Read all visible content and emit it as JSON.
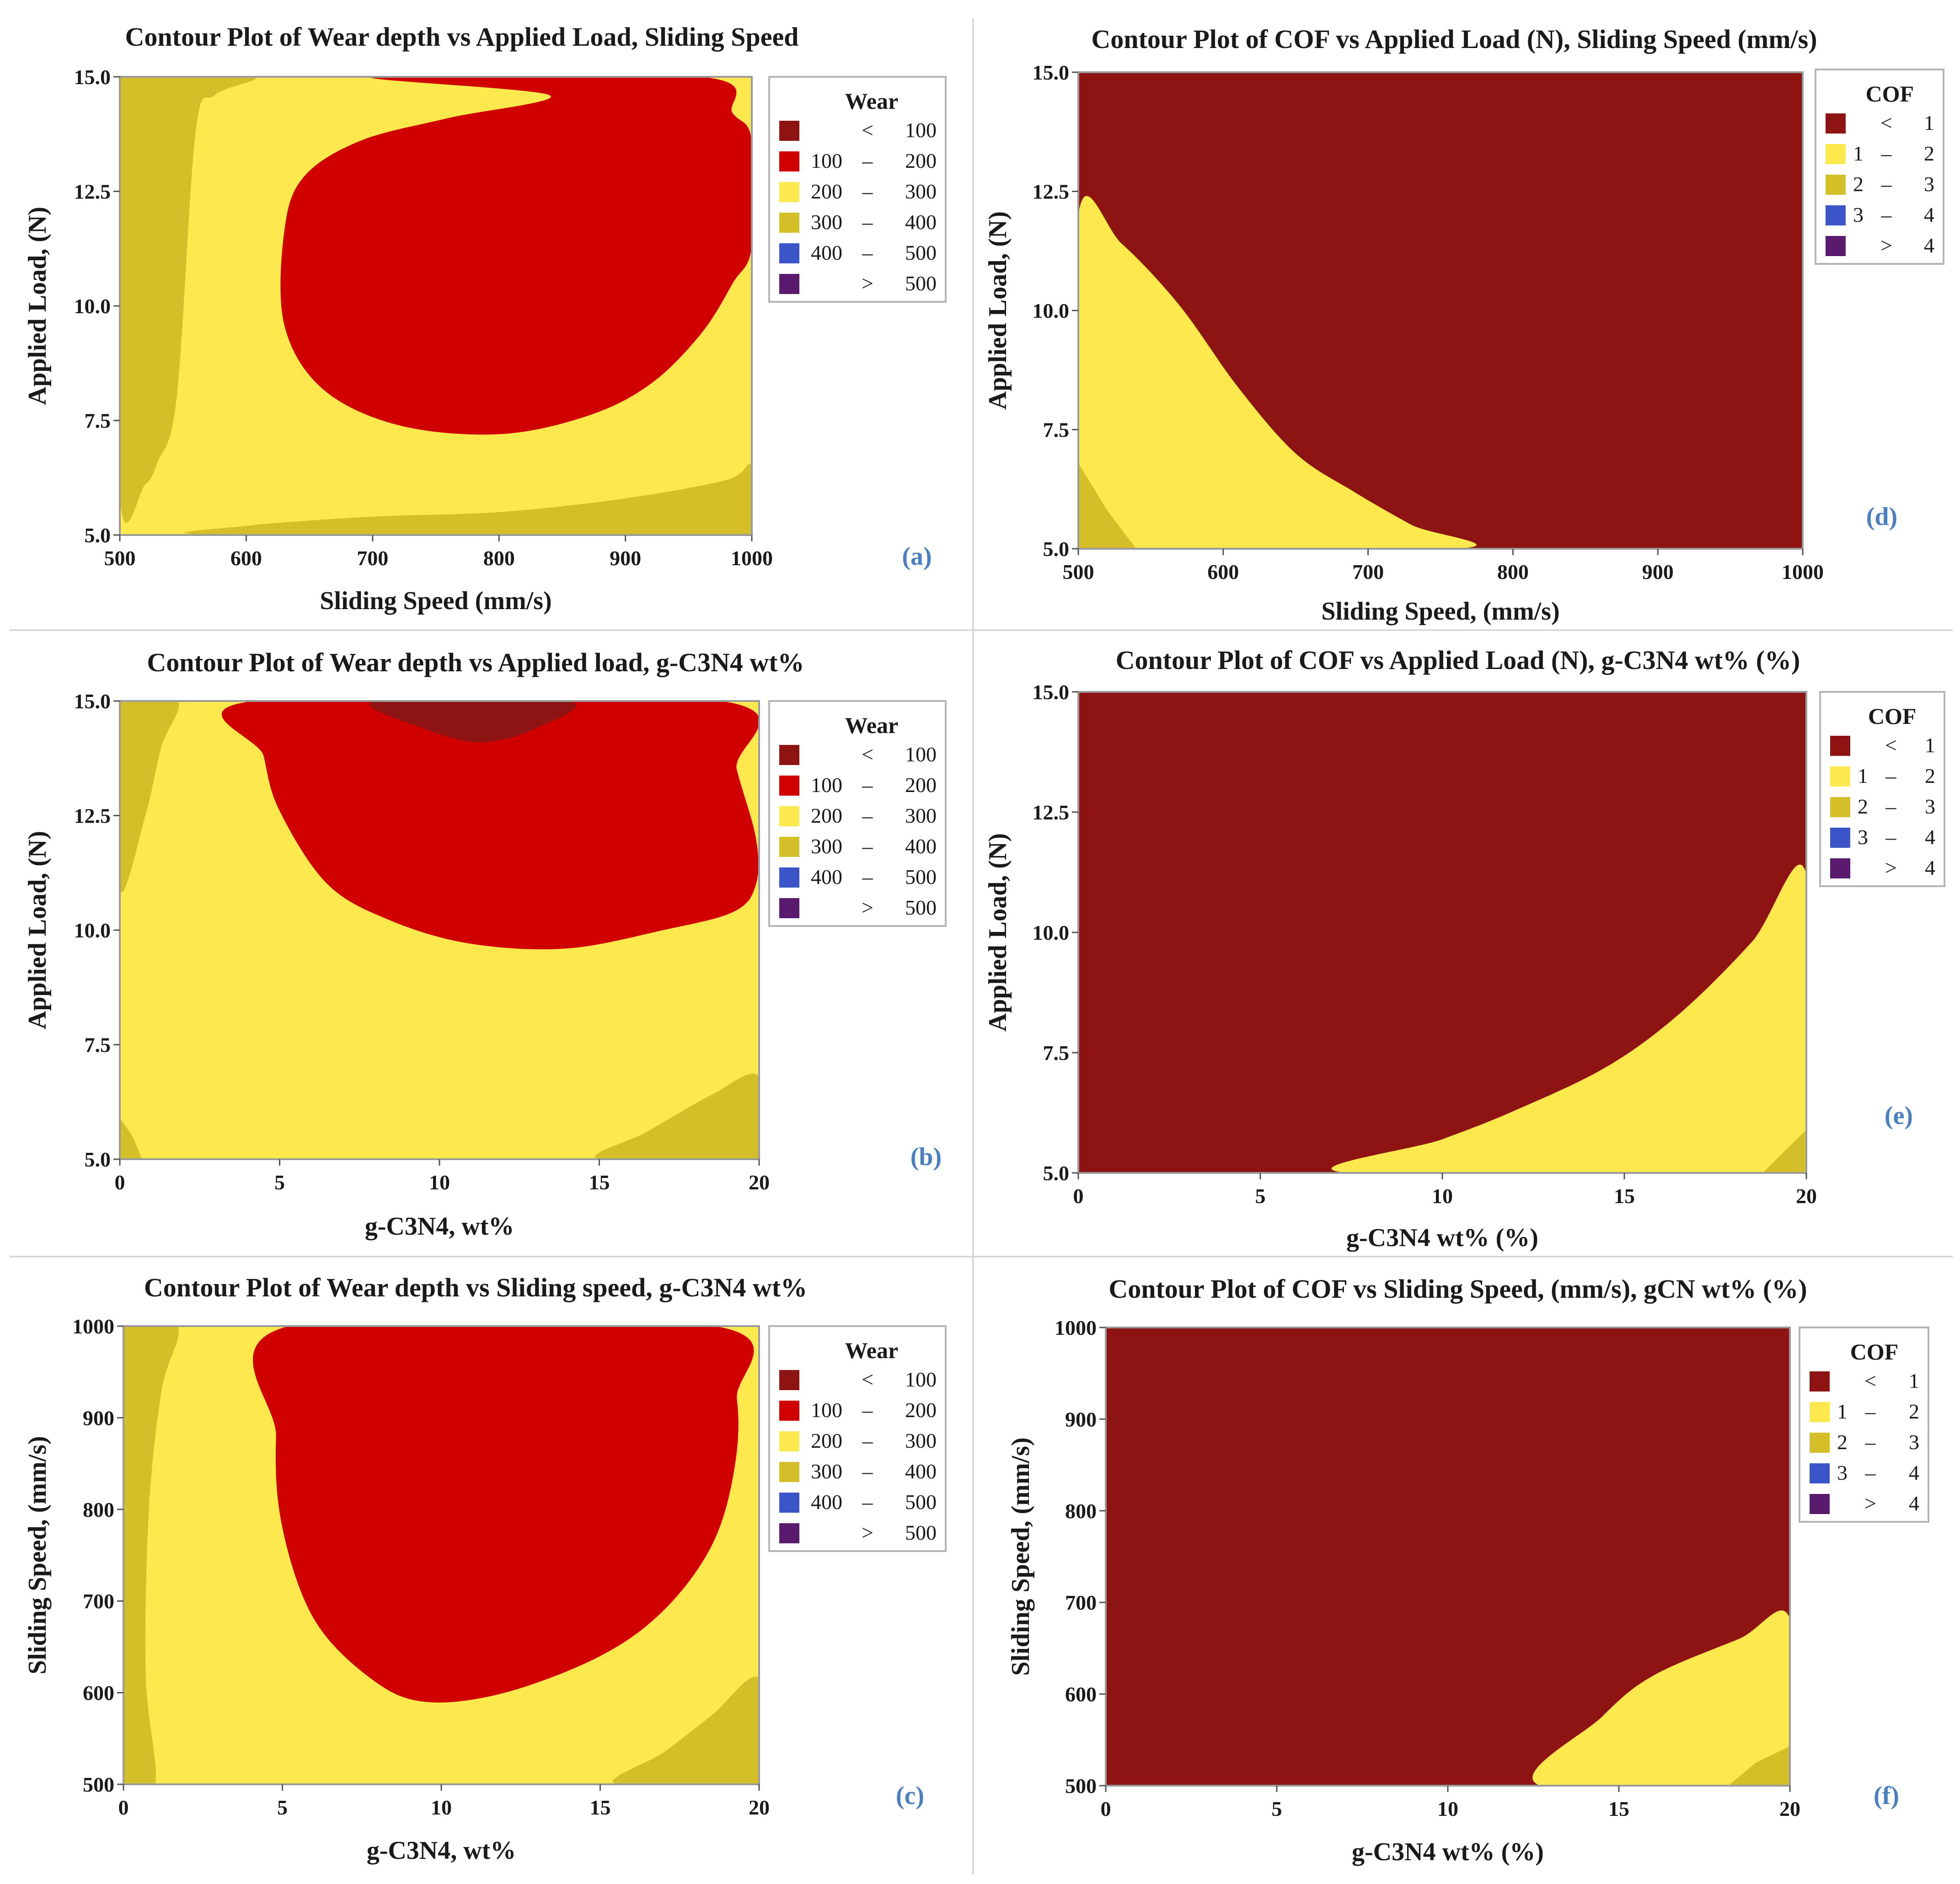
{
  "chart_data": [
    {
      "id": "a",
      "type": "contour",
      "title": "Contour Plot of Wear depth vs Applied Load, Sliding Speed",
      "xlabel": "Sliding Speed (mm/s)",
      "ylabel": "Applied Load, (N)",
      "xlim": [
        500,
        1000
      ],
      "ylim": [
        5,
        15
      ],
      "xticks": [
        "500",
        "600",
        "700",
        "800",
        "900",
        "1000"
      ],
      "yticks": [
        "5.0",
        "7.5",
        "10.0",
        "12.5",
        "15.0"
      ],
      "panel_label": "(a)",
      "legend_title": "Wear",
      "legend": [
        {
          "op": "<",
          "lo": "",
          "hi": "100",
          "color": "#8e1414"
        },
        {
          "op": "–",
          "lo": "100",
          "hi": "200",
          "color": "#d10000"
        },
        {
          "op": "–",
          "lo": "200",
          "hi": "300",
          "color": "#fde84d"
        },
        {
          "op": "–",
          "lo": "300",
          "hi": "400",
          "color": "#d4bf28"
        },
        {
          "op": "–",
          "lo": "400",
          "hi": "500",
          "color": "#3b55c8"
        },
        {
          "op": ">",
          "lo": "",
          "hi": "500",
          "color": "#5a1a6e"
        }
      ],
      "regions": [
        {
          "level": "200 – 300",
          "color": "#fde84d",
          "points": [
            [
              500,
              5
            ],
            [
              1000,
              5
            ],
            [
              1000,
              15
            ],
            [
              500,
              15
            ]
          ]
        },
        {
          "level": "300 – 400",
          "color": "#d4bf28",
          "points": [
            [
              500,
              5.9
            ],
            [
              520,
              6.1
            ],
            [
              530,
              6.6
            ],
            [
              545,
              8
            ],
            [
              560,
              13.8
            ],
            [
              575,
              14.6
            ],
            [
              605,
              15
            ],
            [
              500,
              15
            ]
          ]
        },
        {
          "level": "300 – 400",
          "color": "#d4bf28",
          "points": [
            [
              580,
              5
            ],
            [
              600,
              5.2
            ],
            [
              700,
              5.4
            ],
            [
              800,
              5.5
            ],
            [
              900,
              5.8
            ],
            [
              980,
              6.2
            ],
            [
              1000,
              6.5
            ],
            [
              1000,
              5
            ]
          ]
        },
        {
          "level": "100 – 200",
          "color": "#d10000",
          "points": [
            [
              700,
              15
            ],
            [
              960,
              15
            ],
            [
              985,
              14.2
            ],
            [
              1000,
              13.6
            ],
            [
              1000,
              11.3
            ],
            [
              985,
              10.5
            ],
            [
              960,
              9.4
            ],
            [
              920,
              8.3
            ],
            [
              870,
              7.6
            ],
            [
              800,
              7.2
            ],
            [
              720,
              7.4
            ],
            [
              660,
              8.2
            ],
            [
              630,
              9.6
            ],
            [
              630,
              11.6
            ],
            [
              645,
              12.8
            ],
            [
              690,
              13.6
            ],
            [
              760,
              14.1
            ],
            [
              840,
              14.6
            ]
          ]
        }
      ]
    },
    {
      "id": "d",
      "type": "contour",
      "title": "Contour Plot of COF vs Applied Load (N), Sliding Speed (mm/s)",
      "xlabel": "Sliding Speed, (mm/s)",
      "ylabel": "Applied Load, (N)",
      "xlim": [
        500,
        1000
      ],
      "ylim": [
        5,
        15
      ],
      "xticks": [
        "500",
        "600",
        "700",
        "800",
        "900",
        "1000"
      ],
      "yticks": [
        "5.0",
        "7.5",
        "10.0",
        "12.5",
        "15.0"
      ],
      "panel_label": "(d)",
      "legend_title": "COF",
      "legend": [
        {
          "op": "<",
          "lo": "",
          "hi": "1",
          "color": "#8e1414"
        },
        {
          "op": "–",
          "lo": "1",
          "hi": "2",
          "color": "#fde84d"
        },
        {
          "op": "–",
          "lo": "2",
          "hi": "3",
          "color": "#d4bf28"
        },
        {
          "op": "–",
          "lo": "3",
          "hi": "4",
          "color": "#3b55c8"
        },
        {
          "op": ">",
          "lo": "",
          "hi": "4",
          "color": "#5a1a6e"
        }
      ],
      "regions": [
        {
          "level": "< 1",
          "color": "#8e1414",
          "points": [
            [
              500,
              5
            ],
            [
              1000,
              5
            ],
            [
              1000,
              15
            ],
            [
              500,
              15
            ]
          ]
        },
        {
          "level": "1 – 2",
          "color": "#fde84d",
          "points": [
            [
              500,
              5
            ],
            [
              762,
              5
            ],
            [
              730,
              5.5
            ],
            [
              690,
              6.2
            ],
            [
              650,
              7
            ],
            [
              610,
              8.4
            ],
            [
              570,
              10.1
            ],
            [
              530,
              11.4
            ],
            [
              500,
              12
            ]
          ]
        },
        {
          "level": "2 – 3",
          "color": "#d4bf28",
          "points": [
            [
              500,
              5
            ],
            [
              540,
              5
            ],
            [
              520,
              5.8
            ],
            [
              500,
              6.8
            ]
          ]
        }
      ]
    },
    {
      "id": "b",
      "type": "contour",
      "title": "Contour Plot of Wear depth vs Applied load, g-C3N4 wt%",
      "xlabel": "g-C3N4, wt%",
      "ylabel": "Applied Load, (N)",
      "xlim": [
        0,
        20
      ],
      "ylim": [
        5,
        15
      ],
      "xticks": [
        "0",
        "5",
        "10",
        "15",
        "20"
      ],
      "yticks": [
        "5.0",
        "7.5",
        "10.0",
        "12.5",
        "15.0"
      ],
      "panel_label": "(b)",
      "legend_title": "Wear",
      "legend": [
        {
          "op": "<",
          "lo": "",
          "hi": "100",
          "color": "#8e1414"
        },
        {
          "op": "–",
          "lo": "100",
          "hi": "200",
          "color": "#d10000"
        },
        {
          "op": "–",
          "lo": "200",
          "hi": "300",
          "color": "#fde84d"
        },
        {
          "op": "–",
          "lo": "300",
          "hi": "400",
          "color": "#d4bf28"
        },
        {
          "op": "–",
          "lo": "400",
          "hi": "500",
          "color": "#3b55c8"
        },
        {
          "op": ">",
          "lo": "",
          "hi": "500",
          "color": "#5a1a6e"
        }
      ],
      "regions": [
        {
          "level": "200 – 300",
          "color": "#fde84d",
          "points": [
            [
              0,
              5
            ],
            [
              20,
              5
            ],
            [
              20,
              15
            ],
            [
              0,
              15
            ]
          ]
        },
        {
          "level": "300 – 400",
          "color": "#d4bf28",
          "points": [
            [
              0,
              10.9
            ],
            [
              0.8,
              12.5
            ],
            [
              1.3,
              14
            ],
            [
              1.8,
              15
            ],
            [
              0,
              15
            ]
          ]
        },
        {
          "level": "300 – 400",
          "color": "#d4bf28",
          "points": [
            [
              0,
              5
            ],
            [
              0.7,
              5
            ],
            [
              0.4,
              5.5
            ],
            [
              0,
              5.9
            ]
          ]
        },
        {
          "level": "300 – 400",
          "color": "#d4bf28",
          "points": [
            [
              15,
              5
            ],
            [
              16.5,
              5.6
            ],
            [
              18.5,
              6.4
            ],
            [
              20,
              6.8
            ],
            [
              20,
              5
            ]
          ]
        },
        {
          "level": "100 – 200",
          "color": "#d10000",
          "points": [
            [
              4.2,
              15
            ],
            [
              18.8,
              15
            ],
            [
              19.3,
              13.5
            ],
            [
              19.9,
              12
            ],
            [
              19.9,
              11
            ],
            [
              19.2,
              10.4
            ],
            [
              17,
              10
            ],
            [
              14,
              9.6
            ],
            [
              11,
              9.7
            ],
            [
              8.5,
              10.2
            ],
            [
              6.5,
              11
            ],
            [
              5,
              12.6
            ],
            [
              4.5,
              13.8
            ]
          ]
        },
        {
          "level": "< 100",
          "color": "#8e1414",
          "points": [
            [
              8,
              15
            ],
            [
              14,
              15
            ],
            [
              13,
              14.4
            ],
            [
              11.3,
              14.1
            ],
            [
              9.5,
              14.4
            ]
          ]
        }
      ]
    },
    {
      "id": "e",
      "type": "contour",
      "title": "Contour Plot of COF vs Applied Load (N), g-C3N4 wt% (%)",
      "xlabel": "g-C3N4 wt% (%)",
      "ylabel": "Applied Load, (N)",
      "xlim": [
        0,
        20
      ],
      "ylim": [
        5,
        15
      ],
      "xticks": [
        "0",
        "5",
        "10",
        "15",
        "20"
      ],
      "yticks": [
        "5.0",
        "7.5",
        "10.0",
        "12.5",
        "15.0"
      ],
      "panel_label": "(e)",
      "legend_title": "COF",
      "legend": [
        {
          "op": "<",
          "lo": "",
          "hi": "1",
          "color": "#8e1414"
        },
        {
          "op": "–",
          "lo": "1",
          "hi": "2",
          "color": "#fde84d"
        },
        {
          "op": "–",
          "lo": "2",
          "hi": "3",
          "color": "#d4bf28"
        },
        {
          "op": "–",
          "lo": "3",
          "hi": "4",
          "color": "#3b55c8"
        },
        {
          "op": ">",
          "lo": "",
          "hi": "4",
          "color": "#5a1a6e"
        }
      ],
      "regions": [
        {
          "level": "< 1",
          "color": "#8e1414",
          "points": [
            [
              0,
              5
            ],
            [
              20,
              5
            ],
            [
              20,
              15
            ],
            [
              0,
              15
            ]
          ]
        },
        {
          "level": "1 – 2",
          "color": "#fde84d",
          "points": [
            [
              7.4,
              5
            ],
            [
              20,
              5
            ],
            [
              20,
              11.2
            ],
            [
              18.5,
              9.8
            ],
            [
              16.5,
              8.3
            ],
            [
              14.5,
              7.2
            ],
            [
              12,
              6.3
            ],
            [
              10,
              5.7
            ]
          ]
        },
        {
          "level": "2 – 3",
          "color": "#d4bf28",
          "points": [
            [
              18.8,
              5
            ],
            [
              20,
              5
            ],
            [
              20,
              5.9
            ]
          ]
        }
      ]
    },
    {
      "id": "c",
      "type": "contour",
      "title": "Contour Plot of Wear depth vs Sliding speed, g-C3N4 wt%",
      "xlabel": "g-C3N4, wt%",
      "ylabel": "Sliding Speed, (mm/s)",
      "xlim": [
        0,
        20
      ],
      "ylim": [
        500,
        1000
      ],
      "xticks": [
        "0",
        "5",
        "10",
        "15",
        "20"
      ],
      "yticks": [
        "500",
        "600",
        "700",
        "800",
        "900",
        "1000"
      ],
      "panel_label": "(c)",
      "legend_title": "Wear",
      "legend": [
        {
          "op": "<",
          "lo": "",
          "hi": "100",
          "color": "#8e1414"
        },
        {
          "op": "–",
          "lo": "100",
          "hi": "200",
          "color": "#d10000"
        },
        {
          "op": "–",
          "lo": "200",
          "hi": "300",
          "color": "#fde84d"
        },
        {
          "op": "–",
          "lo": "300",
          "hi": "400",
          "color": "#d4bf28"
        },
        {
          "op": "–",
          "lo": "400",
          "hi": "500",
          "color": "#3b55c8"
        },
        {
          "op": ">",
          "lo": "",
          "hi": "500",
          "color": "#5a1a6e"
        }
      ],
      "regions": [
        {
          "level": "200 – 300",
          "color": "#fde84d",
          "points": [
            [
              0,
              500
            ],
            [
              20,
              500
            ],
            [
              20,
              1000
            ],
            [
              0,
              1000
            ]
          ]
        },
        {
          "level": "300 – 400",
          "color": "#d4bf28",
          "points": [
            [
              0,
              500
            ],
            [
              1,
              500
            ],
            [
              0.7,
              620
            ],
            [
              0.8,
              800
            ],
            [
              1.2,
              930
            ],
            [
              1.7,
              1000
            ],
            [
              0,
              1000
            ]
          ]
        },
        {
          "level": "300 – 400",
          "color": "#d4bf28",
          "points": [
            [
              15.5,
              500
            ],
            [
              20,
              500
            ],
            [
              20,
              615
            ],
            [
              18.5,
              575
            ],
            [
              17,
              535
            ]
          ]
        },
        {
          "level": "100 – 200",
          "color": "#d10000",
          "points": [
            [
              5.2,
              1000
            ],
            [
              18.6,
              1000
            ],
            [
              19.3,
              920
            ],
            [
              19.2,
              840
            ],
            [
              18.5,
              760
            ],
            [
              17,
              690
            ],
            [
              15,
              640
            ],
            [
              12,
              600
            ],
            [
              9.5,
              590
            ],
            [
              7.8,
              615
            ],
            [
              6,
              680
            ],
            [
              5,
              780
            ],
            [
              4.8,
              880
            ]
          ]
        }
      ]
    },
    {
      "id": "f",
      "type": "contour",
      "title": "Contour Plot of COF vs Sliding Speed, (mm/s), gCN wt% (%)",
      "xlabel": "g-C3N4 wt% (%)",
      "ylabel": "Sliding Speed, (mm/s)",
      "xlim": [
        0,
        20
      ],
      "ylim": [
        500,
        1000
      ],
      "xticks": [
        "0",
        "5",
        "10",
        "15",
        "20"
      ],
      "yticks": [
        "500",
        "600",
        "700",
        "800",
        "900",
        "1000"
      ],
      "panel_label": "(f)",
      "legend_title": "COF",
      "legend": [
        {
          "op": "<",
          "lo": "",
          "hi": "1",
          "color": "#8e1414"
        },
        {
          "op": "–",
          "lo": "1",
          "hi": "2",
          "color": "#fde84d"
        },
        {
          "op": "–",
          "lo": "2",
          "hi": "3",
          "color": "#d4bf28"
        },
        {
          "op": "–",
          "lo": "3",
          "hi": "4",
          "color": "#3b55c8"
        },
        {
          "op": ">",
          "lo": "",
          "hi": "4",
          "color": "#5a1a6e"
        }
      ],
      "regions": [
        {
          "level": "< 1",
          "color": "#8e1414",
          "points": [
            [
              0,
              500
            ],
            [
              20,
              500
            ],
            [
              20,
              1000
            ],
            [
              0,
              1000
            ]
          ]
        },
        {
          "level": "1 – 2",
          "color": "#fde84d",
          "points": [
            [
              12.7,
              500
            ],
            [
              20,
              500
            ],
            [
              20,
              682
            ],
            [
              18.5,
              660
            ],
            [
              16,
              620
            ],
            [
              14.5,
              575
            ]
          ]
        },
        {
          "level": "2 – 3",
          "color": "#d4bf28",
          "points": [
            [
              18.2,
              500
            ],
            [
              20,
              500
            ],
            [
              20,
              543
            ],
            [
              19,
              525
            ]
          ]
        }
      ]
    }
  ]
}
